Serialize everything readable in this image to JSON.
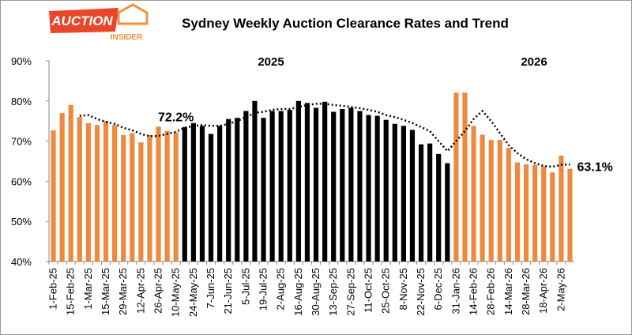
{
  "logo": {
    "name": "AUCTION",
    "tagline": "INSIDER"
  },
  "chart_data": {
    "type": "bar",
    "title": "Sydney Weekly Auction Clearance Rates and Trend",
    "annotations": [
      {
        "text": "2025"
      },
      {
        "text": "2026"
      }
    ],
    "categories": [
      "1-Feb-25",
      null,
      "15-Feb-25",
      null,
      "1-Mar-25",
      null,
      "15-Mar-25",
      null,
      "29-Mar-25",
      null,
      "12-Apr-25",
      null,
      "26-Apr-25",
      null,
      "10-May-25",
      null,
      "24-May-25",
      null,
      "7-Jun-25",
      null,
      "21-Jun-25",
      null,
      "5-Jul-25",
      null,
      "19-Jul-25",
      null,
      "2-Aug-25",
      null,
      "16-Aug-25",
      null,
      "30-Aug-25",
      null,
      "13-Sep-25",
      null,
      "27-Sep-25",
      null,
      "11-Oct-25",
      null,
      "25-Oct-25",
      null,
      "8-Nov-25",
      null,
      "22-Nov-25",
      null,
      "6-Dec-25",
      null,
      "31-Jan-26",
      null,
      "14-Feb-26",
      null,
      "28-Feb-26",
      null,
      "14-Mar-26",
      null,
      "28-Mar-26",
      null,
      "18-Apr-26",
      null,
      "2-May-26",
      null
    ],
    "values": [
      72.7,
      77,
      79,
      76,
      74.5,
      74,
      75,
      74,
      71.5,
      72,
      69.7,
      71.5,
      73.6,
      72.5,
      72.2,
      73.5,
      74.5,
      73.8,
      71.8,
      73.8,
      75.5,
      75.8,
      77.5,
      80,
      75.8,
      77.5,
      77.5,
      77.8,
      80,
      79.5,
      78.3,
      79.8,
      77.3,
      78,
      78.3,
      77.5,
      76.5,
      76.3,
      75.3,
      74.3,
      73.8,
      72.8,
      69.2,
      69.4,
      66.8,
      64.5,
      82.1,
      82.1,
      73.8,
      71.6,
      70.3,
      70.3,
      68.3,
      64.7,
      64.2,
      64.1,
      63.7,
      62.2,
      66.4,
      63.1
    ],
    "value_labels": [
      null,
      null,
      null,
      null,
      null,
      null,
      null,
      null,
      null,
      null,
      null,
      null,
      null,
      null,
      "72.2%",
      null,
      null,
      null,
      null,
      null,
      null,
      null,
      null,
      null,
      null,
      null,
      null,
      null,
      null,
      null,
      null,
      null,
      null,
      null,
      null,
      null,
      null,
      null,
      null,
      null,
      null,
      null,
      null,
      null,
      null,
      null,
      null,
      null,
      null,
      null,
      null,
      null,
      null,
      null,
      null,
      null,
      null,
      null,
      null,
      "63.1%"
    ],
    "bar_colors": [
      "#ed8a3f",
      "#ed8a3f",
      "#ed8a3f",
      "#ed8a3f",
      "#ed8a3f",
      "#ed8a3f",
      "#ed8a3f",
      "#ed8a3f",
      "#ed8a3f",
      "#ed8a3f",
      "#ed8a3f",
      "#ed8a3f",
      "#ed8a3f",
      "#ed8a3f",
      "#ed8a3f",
      "#000000",
      "#000000",
      "#000000",
      "#000000",
      "#000000",
      "#000000",
      "#000000",
      "#000000",
      "#000000",
      "#000000",
      "#000000",
      "#000000",
      "#000000",
      "#000000",
      "#000000",
      "#000000",
      "#000000",
      "#000000",
      "#000000",
      "#000000",
      "#000000",
      "#000000",
      "#000000",
      "#000000",
      "#000000",
      "#000000",
      "#000000",
      "#000000",
      "#000000",
      "#000000",
      "#000000",
      "#ed8a3f",
      "#ed8a3f",
      "#ed8a3f",
      "#ed8a3f",
      "#ed8a3f",
      "#ed8a3f",
      "#ed8a3f",
      "#ed8a3f",
      "#ed8a3f",
      "#ed8a3f",
      "#ed8a3f",
      "#ed8a3f",
      "#ed8a3f",
      "#ed8a3f"
    ],
    "trend": {
      "color": "#000000",
      "values": [
        null,
        null,
        null,
        76.3,
        76.5,
        75.5,
        74.8,
        74.3,
        73.3,
        72.7,
        71.8,
        71.2,
        71.3,
        71.8,
        72.3,
        73.3,
        73.8,
        74.0,
        73.8,
        73.8,
        74.3,
        75.0,
        76.0,
        77.0,
        77.3,
        77.8,
        78.0,
        78.0,
        78.5,
        79.0,
        79.3,
        79.3,
        79.0,
        78.8,
        78.5,
        78.2,
        77.8,
        77.3,
        76.5,
        76.0,
        75.3,
        74.5,
        73.5,
        72.5,
        70.0,
        67.5,
        70,
        72.5,
        75.5,
        77.5,
        75,
        72,
        69,
        67,
        65.5,
        64.5,
        63.8,
        63.6,
        64.1,
        64.2
      ]
    },
    "ylim": [
      40,
      90
    ],
    "yticks": [
      {
        "value": 40,
        "label": "40%"
      },
      {
        "value": 50,
        "label": "50%"
      },
      {
        "value": 60,
        "label": "60%"
      },
      {
        "value": 70,
        "label": "70%"
      },
      {
        "value": 80,
        "label": "80%"
      },
      {
        "value": 90,
        "label": "90%"
      }
    ],
    "grid": false
  }
}
